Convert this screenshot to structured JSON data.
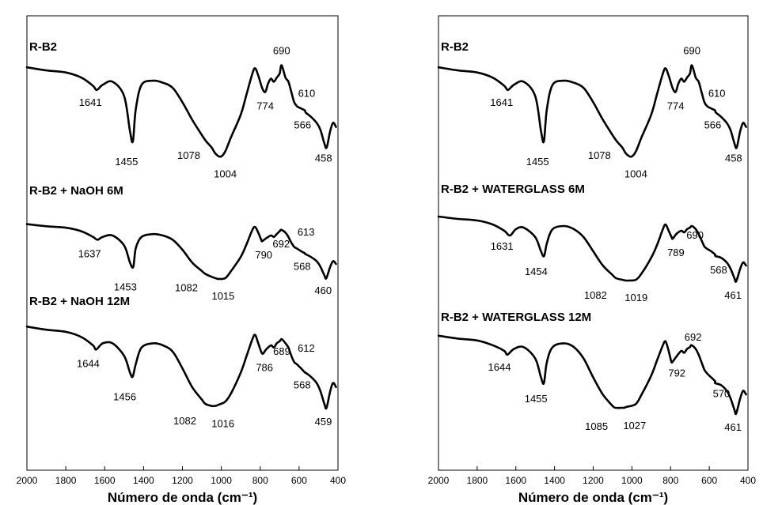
{
  "chart_data": [
    {
      "type": "line",
      "panel": "left",
      "xlabel": "Número de onda (cm⁻¹)",
      "xlim": [
        2000,
        400
      ],
      "x_ticks": [
        2000,
        1800,
        1600,
        1400,
        1200,
        1000,
        800,
        600,
        400
      ],
      "y_ticks": [],
      "series": [
        {
          "name": "R-B2",
          "x": [
            2000,
            1900,
            1800,
            1720,
            1660,
            1641,
            1610,
            1560,
            1500,
            1470,
            1455,
            1440,
            1410,
            1350,
            1300,
            1250,
            1200,
            1150,
            1100,
            1078,
            1050,
            1030,
            1004,
            980,
            950,
            900,
            870,
            840,
            826,
            810,
            790,
            774,
            760,
            745,
            730,
            715,
            700,
            690,
            670,
            655,
            640,
            625,
            610,
            590,
            570,
            566,
            540,
            510,
            490,
            470,
            458,
            440,
            425,
            410
          ],
          "y": [
            0.96,
            0.93,
            0.91,
            0.86,
            0.78,
            0.74,
            0.79,
            0.82,
            0.68,
            0.34,
            0.24,
            0.55,
            0.79,
            0.83,
            0.81,
            0.76,
            0.62,
            0.45,
            0.3,
            0.24,
            0.18,
            0.12,
            0.09,
            0.14,
            0.28,
            0.5,
            0.7,
            0.9,
            0.95,
            0.88,
            0.76,
            0.72,
            0.8,
            0.85,
            0.82,
            0.86,
            0.9,
            0.98,
            0.86,
            0.82,
            0.72,
            0.62,
            0.58,
            0.56,
            0.54,
            0.52,
            0.48,
            0.42,
            0.35,
            0.22,
            0.18,
            0.34,
            0.42,
            0.38
          ],
          "label": "R-B2",
          "peak_labels": [
            "1641",
            "1455",
            "1078",
            "1004",
            "774",
            "690",
            "610",
            "566",
            "458"
          ]
        },
        {
          "name": "R-B2 + NaOH 6M",
          "x": [
            2000,
            1900,
            1800,
            1720,
            1660,
            1637,
            1610,
            1560,
            1500,
            1470,
            1453,
            1440,
            1410,
            1350,
            1300,
            1250,
            1200,
            1150,
            1100,
            1082,
            1050,
            1030,
            1015,
            980,
            950,
            900,
            870,
            840,
            826,
            810,
            795,
            790,
            770,
            745,
            730,
            715,
            700,
            692,
            670,
            655,
            640,
            625,
            613,
            590,
            570,
            568,
            540,
            510,
            490,
            470,
            460,
            440,
            425,
            410
          ],
          "y": [
            0.96,
            0.93,
            0.91,
            0.86,
            0.78,
            0.74,
            0.78,
            0.8,
            0.66,
            0.42,
            0.36,
            0.62,
            0.78,
            0.82,
            0.8,
            0.74,
            0.6,
            0.42,
            0.3,
            0.26,
            0.22,
            0.2,
            0.19,
            0.2,
            0.3,
            0.5,
            0.68,
            0.88,
            0.92,
            0.84,
            0.74,
            0.72,
            0.76,
            0.8,
            0.78,
            0.82,
            0.86,
            0.88,
            0.84,
            0.78,
            0.7,
            0.64,
            0.62,
            0.58,
            0.55,
            0.54,
            0.5,
            0.44,
            0.36,
            0.24,
            0.2,
            0.36,
            0.44,
            0.4
          ],
          "label": "R-B2 + NaOH 6M",
          "peak_labels": [
            "1637",
            "1453",
            "1082",
            "1015",
            "790",
            "692",
            "613",
            "568",
            "460"
          ]
        },
        {
          "name": "R-B2 + NaOH 12M",
          "x": [
            2000,
            1900,
            1800,
            1720,
            1660,
            1644,
            1610,
            1560,
            1500,
            1470,
            1456,
            1440,
            1410,
            1350,
            1300,
            1250,
            1200,
            1150,
            1100,
            1082,
            1050,
            1030,
            1016,
            980,
            950,
            900,
            870,
            840,
            826,
            810,
            795,
            786,
            770,
            745,
            730,
            715,
            700,
            689,
            670,
            655,
            640,
            625,
            612,
            590,
            570,
            568,
            540,
            510,
            490,
            470,
            459,
            440,
            425,
            410
          ],
          "y": [
            0.96,
            0.93,
            0.91,
            0.86,
            0.78,
            0.74,
            0.8,
            0.8,
            0.68,
            0.52,
            0.48,
            0.6,
            0.76,
            0.8,
            0.78,
            0.72,
            0.56,
            0.38,
            0.26,
            0.22,
            0.2,
            0.2,
            0.21,
            0.24,
            0.32,
            0.52,
            0.68,
            0.84,
            0.88,
            0.8,
            0.72,
            0.7,
            0.74,
            0.78,
            0.76,
            0.8,
            0.82,
            0.84,
            0.8,
            0.76,
            0.68,
            0.62,
            0.6,
            0.56,
            0.52,
            0.52,
            0.48,
            0.42,
            0.34,
            0.22,
            0.18,
            0.34,
            0.42,
            0.38
          ],
          "label": "R-B2 + NaOH 12M",
          "peak_labels": [
            "1644",
            "1456",
            "1082",
            "1016",
            "786",
            "689",
            "612",
            "568",
            "459"
          ]
        }
      ]
    },
    {
      "type": "line",
      "panel": "right",
      "xlabel": "Número de onda (cm⁻¹)",
      "xlim": [
        2000,
        400
      ],
      "x_ticks": [
        2000,
        1800,
        1600,
        1400,
        1200,
        1000,
        800,
        600,
        400
      ],
      "y_ticks": [],
      "series": [
        {
          "name": "R-B2",
          "x": [
            2000,
            1900,
            1800,
            1720,
            1660,
            1641,
            1610,
            1560,
            1500,
            1470,
            1455,
            1440,
            1410,
            1350,
            1300,
            1250,
            1200,
            1150,
            1100,
            1078,
            1050,
            1030,
            1004,
            980,
            950,
            900,
            870,
            840,
            826,
            810,
            790,
            774,
            760,
            745,
            730,
            715,
            700,
            690,
            670,
            655,
            640,
            625,
            610,
            590,
            570,
            566,
            540,
            510,
            490,
            470,
            458,
            440,
            425,
            410
          ],
          "y": [
            0.96,
            0.93,
            0.91,
            0.86,
            0.78,
            0.74,
            0.79,
            0.82,
            0.68,
            0.34,
            0.24,
            0.55,
            0.79,
            0.83,
            0.81,
            0.76,
            0.62,
            0.45,
            0.3,
            0.24,
            0.18,
            0.12,
            0.09,
            0.14,
            0.28,
            0.5,
            0.7,
            0.9,
            0.95,
            0.88,
            0.76,
            0.72,
            0.8,
            0.85,
            0.82,
            0.86,
            0.9,
            0.98,
            0.86,
            0.82,
            0.72,
            0.62,
            0.58,
            0.56,
            0.54,
            0.52,
            0.48,
            0.42,
            0.35,
            0.22,
            0.18,
            0.34,
            0.42,
            0.38
          ],
          "label": "R-B2",
          "peak_labels": [
            "1641",
            "1455",
            "1078",
            "1004",
            "774",
            "690",
            "610",
            "566",
            "458"
          ]
        },
        {
          "name": "R-B2 + WATERGLASS 6M",
          "x": [
            2000,
            1900,
            1800,
            1720,
            1660,
            1631,
            1600,
            1560,
            1500,
            1470,
            1454,
            1440,
            1410,
            1350,
            1300,
            1250,
            1200,
            1150,
            1100,
            1082,
            1050,
            1030,
            1019,
            980,
            950,
            900,
            870,
            840,
            826,
            810,
            795,
            789,
            770,
            745,
            730,
            715,
            700,
            690,
            670,
            655,
            640,
            625,
            610,
            590,
            570,
            568,
            540,
            510,
            490,
            470,
            461,
            440,
            425,
            410
          ],
          "y": [
            0.96,
            0.93,
            0.91,
            0.86,
            0.78,
            0.72,
            0.8,
            0.82,
            0.7,
            0.52,
            0.46,
            0.62,
            0.8,
            0.84,
            0.8,
            0.7,
            0.52,
            0.34,
            0.22,
            0.18,
            0.16,
            0.15,
            0.15,
            0.16,
            0.24,
            0.44,
            0.6,
            0.8,
            0.86,
            0.78,
            0.7,
            0.68,
            0.74,
            0.78,
            0.76,
            0.8,
            0.82,
            0.84,
            0.8,
            0.74,
            0.66,
            0.58,
            0.55,
            0.52,
            0.48,
            0.46,
            0.44,
            0.38,
            0.3,
            0.18,
            0.14,
            0.3,
            0.38,
            0.34
          ],
          "label": "R-B2 + WATERGLASS 6M",
          "peak_labels": [
            "1631",
            "1454",
            "1082",
            "1019",
            "789",
            "690",
            "568",
            "461"
          ]
        },
        {
          "name": "R-B2 + WATERGLASS 12M",
          "x": [
            2000,
            1900,
            1800,
            1720,
            1660,
            1644,
            1610,
            1560,
            1500,
            1470,
            1455,
            1440,
            1410,
            1350,
            1300,
            1250,
            1200,
            1150,
            1100,
            1085,
            1050,
            1040,
            1027,
            980,
            950,
            900,
            870,
            840,
            826,
            810,
            798,
            792,
            770,
            745,
            730,
            715,
            700,
            692,
            670,
            655,
            640,
            625,
            610,
            590,
            570,
            570,
            540,
            510,
            490,
            470,
            461,
            440,
            425,
            410
          ],
          "y": [
            0.96,
            0.93,
            0.91,
            0.86,
            0.8,
            0.76,
            0.82,
            0.84,
            0.72,
            0.52,
            0.46,
            0.68,
            0.84,
            0.88,
            0.84,
            0.72,
            0.52,
            0.34,
            0.22,
            0.2,
            0.2,
            0.2,
            0.21,
            0.24,
            0.34,
            0.54,
            0.7,
            0.86,
            0.9,
            0.8,
            0.7,
            0.68,
            0.74,
            0.8,
            0.78,
            0.82,
            0.84,
            0.86,
            0.82,
            0.76,
            0.68,
            0.6,
            0.56,
            0.52,
            0.48,
            0.46,
            0.44,
            0.38,
            0.3,
            0.18,
            0.14,
            0.3,
            0.38,
            0.34
          ],
          "label": "R-B2 + WATERGLASS 12M",
          "peak_labels": [
            "1644",
            "1455",
            "1085",
            "1027",
            "792",
            "692",
            "570",
            "461"
          ]
        }
      ]
    }
  ]
}
